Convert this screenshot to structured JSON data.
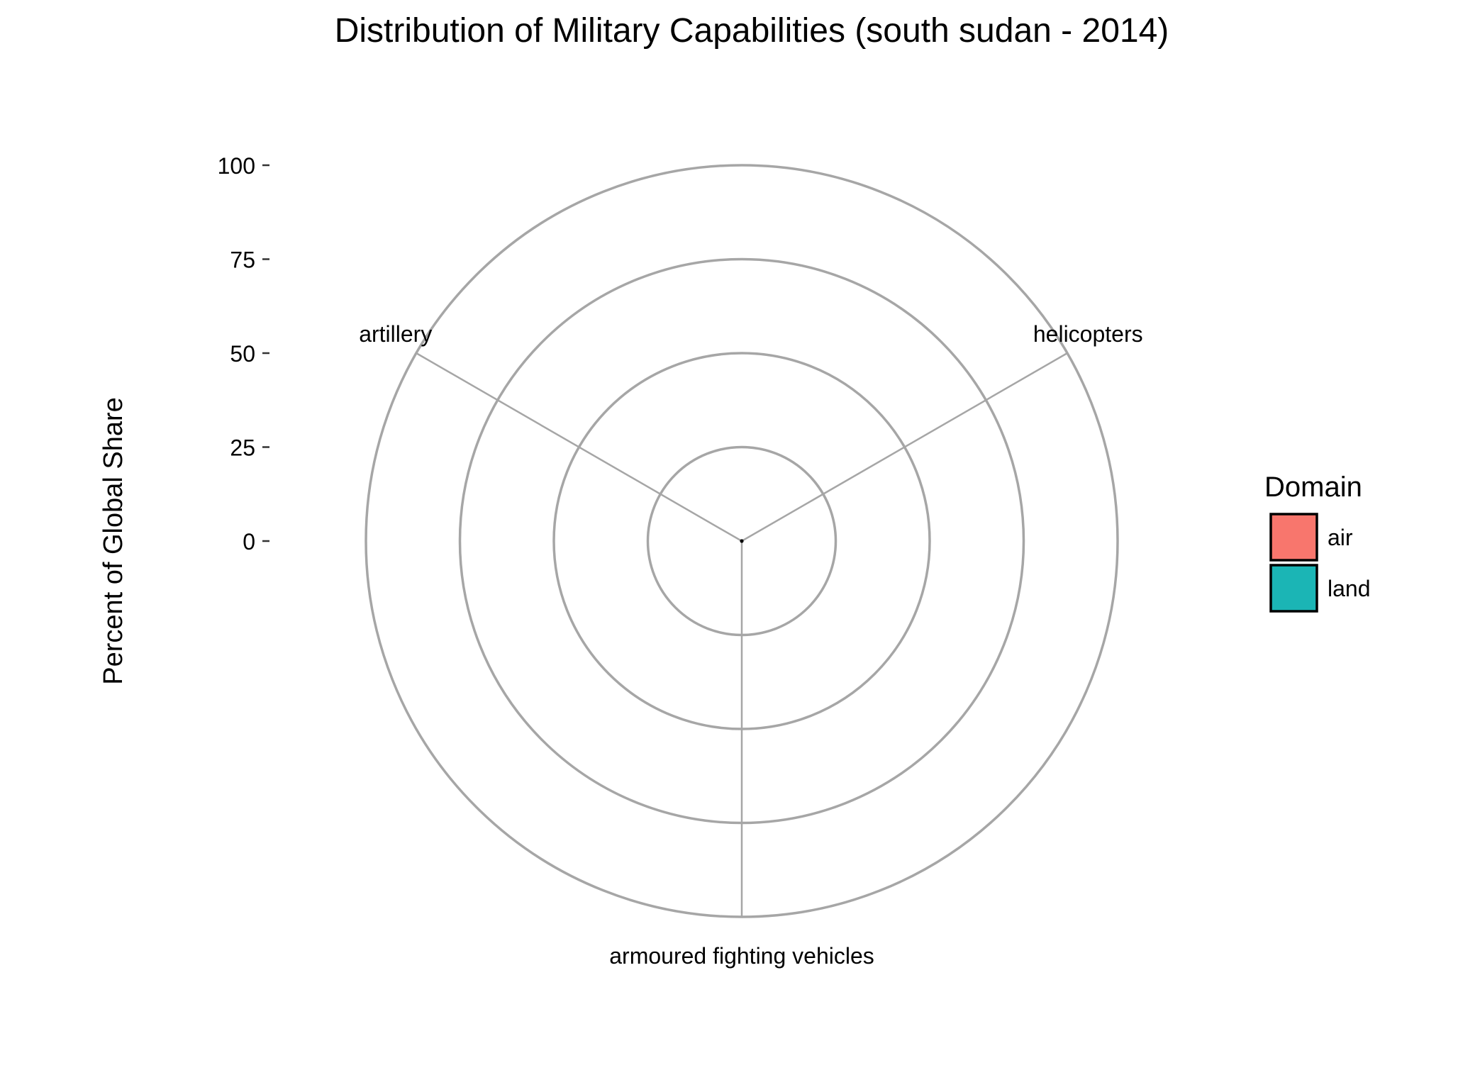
{
  "chart_data": {
    "type": "radar",
    "title": "Distribution of Military Capabilities (south sudan - 2014)",
    "xlabel": "",
    "ylabel": "Percent of Global Share",
    "ylim": [
      0,
      100
    ],
    "ticks": [
      {
        "value": 0,
        "label": "0"
      },
      {
        "value": 25,
        "label": "25"
      },
      {
        "value": 50,
        "label": "50"
      },
      {
        "value": 75,
        "label": "75"
      },
      {
        "value": 100,
        "label": "100"
      }
    ],
    "categories": [
      "artillery",
      "helicopters",
      "armoured fighting vehicles"
    ],
    "category_domains": [
      "land",
      "air",
      "land"
    ],
    "values": [
      0,
      0,
      0
    ],
    "grid": true,
    "grid_color": "#a6a6a6",
    "legend": {
      "title": "Domain",
      "placement": "right",
      "entries": [
        {
          "name": "air",
          "color": "#f8766d"
        },
        {
          "name": "land",
          "color": "#1bb5b5"
        }
      ]
    }
  }
}
